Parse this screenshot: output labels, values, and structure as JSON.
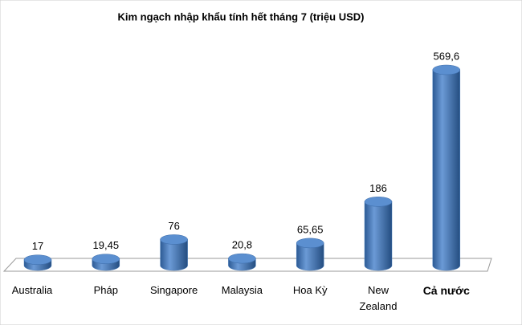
{
  "chart_data": {
    "type": "bar",
    "title": "Kim ngạch nhập khẩu tính hết tháng 7 (triệu USD)",
    "categories": [
      "Australia",
      "Pháp",
      "Singapore",
      "Malaysia",
      "Hoa Kỳ",
      "New Zealand",
      "Cả nước"
    ],
    "values": [
      17,
      19.45,
      76,
      20.8,
      65.65,
      186,
      569.6
    ],
    "value_labels": [
      "17",
      "19,45",
      "76",
      "20,8",
      "65,65",
      "186",
      "569,6"
    ],
    "color": "#4f81bd"
  }
}
